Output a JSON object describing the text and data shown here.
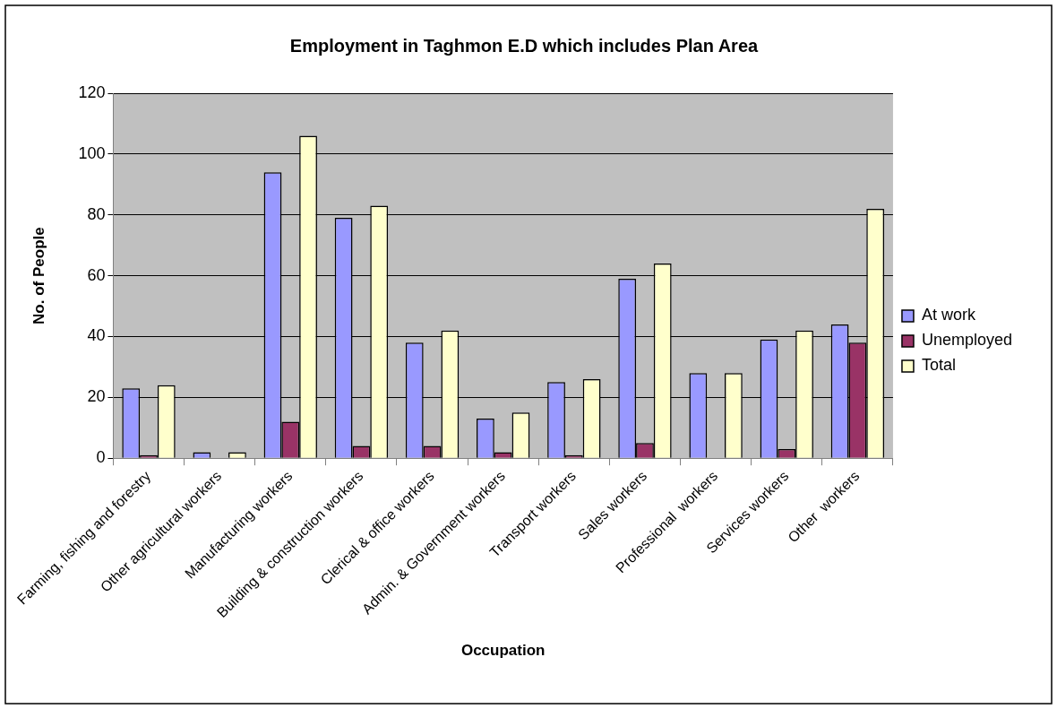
{
  "chart_data": {
    "type": "bar",
    "title": "Employment in Taghmon E.D which includes Plan Area",
    "xlabel": "Occupation",
    "ylabel": "No. of People",
    "categories": [
      "Farming, fishing and forestry",
      "Other agricultural workers",
      "Manufacturing workers",
      "Building & construction workers",
      "Clerical & office workers",
      "Admin. & Government workers",
      "Transport workers",
      "Sales workers",
      "Professional  workers",
      "Services workers",
      "Other  workers"
    ],
    "series": [
      {
        "name": "At work",
        "color": "#9999ff",
        "values": [
          23,
          2,
          94,
          79,
          38,
          13,
          25,
          59,
          28,
          39,
          44
        ]
      },
      {
        "name": "Unemployed",
        "color": "#993366",
        "values": [
          1,
          0,
          12,
          4,
          4,
          2,
          1,
          5,
          0,
          3,
          38
        ]
      },
      {
        "name": "Total",
        "color": "#ffffcc",
        "values": [
          24,
          2,
          106,
          83,
          42,
          15,
          26,
          64,
          28,
          42,
          82
        ]
      }
    ],
    "ylim": [
      0,
      120
    ],
    "yticks": [
      0,
      20,
      40,
      60,
      80,
      100,
      120
    ],
    "grid": "y",
    "legend": "right"
  }
}
